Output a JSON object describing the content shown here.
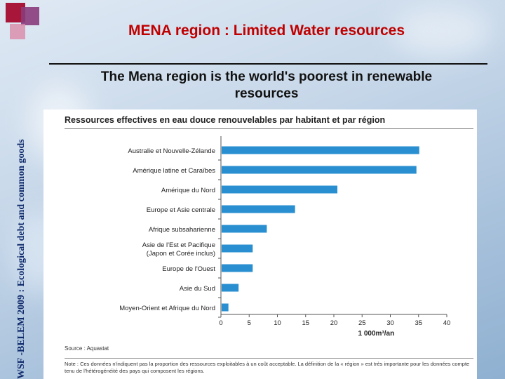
{
  "side_text": "WSF -BELEM 2009 : Ecological debt and common goods",
  "slide": {
    "title": "MENA region : Limited Water resources",
    "subtitle": "The Mena region is the world's poorest in renewable resources"
  },
  "chart_data": {
    "type": "bar",
    "orientation": "horizontal",
    "title": "Ressources effectives en eau douce renouvelables par habitant et par région",
    "categories": [
      "Australie et Nouvelle-Zélande",
      "Amérique latine et Caraïbes",
      "Amérique du Nord",
      "Europe et Asie centrale",
      "Afrique subsaharienne",
      "Asie de l'Est et Pacifique\n(Japon et Corée inclus)",
      "Europe de l'Ouest",
      "Asie du Sud",
      "Moyen-Orient et Afrique du Nord"
    ],
    "values": [
      35,
      34.5,
      20.5,
      13,
      8,
      5.5,
      5.5,
      3,
      1.2
    ],
    "xlabel": "1 000m³/an",
    "xlim": [
      0,
      40
    ],
    "xticks": [
      0,
      5,
      10,
      15,
      20,
      25,
      30,
      35,
      40
    ],
    "bar_color": "#2a8fd0",
    "source": "Source : Aquastat",
    "note": "Note : Ces données n'indiquent pas la proportion des ressources exploitables à un coût acceptable. La définition de la « région » est très importante pour les données compte tenu de l'hétérogénéité des pays qui composent les régions."
  }
}
